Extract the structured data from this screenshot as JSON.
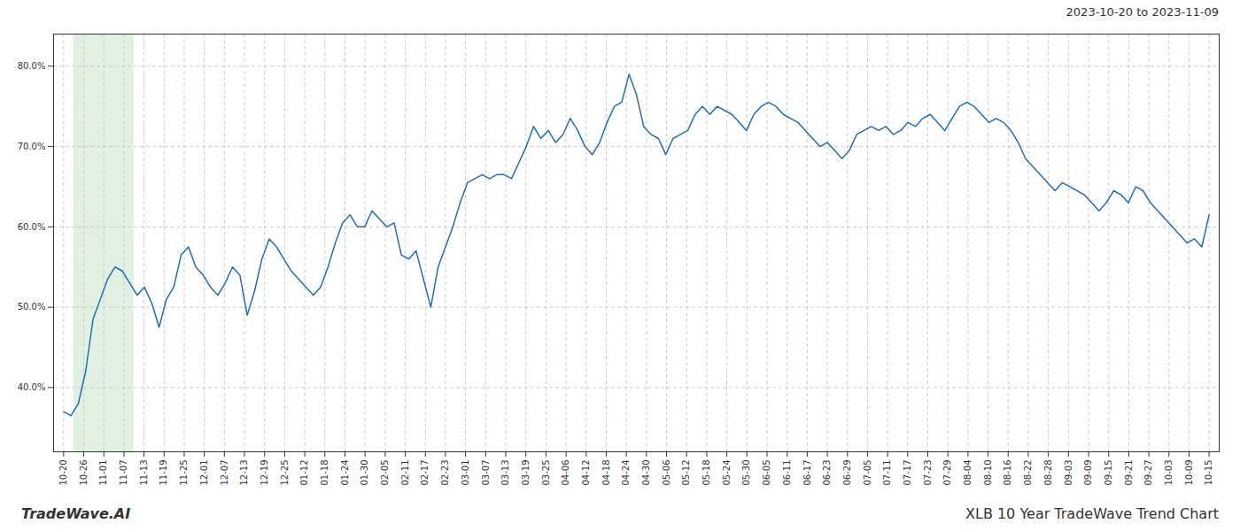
{
  "chart_data": {
    "type": "line",
    "title": "XLB 10 Year TradeWave Trend Chart",
    "subtitle": "2023-10-20 to 2023-11-09",
    "annotations": [
      "TradeWave.AI"
    ],
    "color": "#1f6eb5",
    "grid": true,
    "shade": {
      "x": [
        0.5,
        3.5
      ],
      "color": "#d6ead6"
    },
    "xlim": [
      -0.5,
      57.5
    ],
    "xticks": [
      {
        "value": 0,
        "label": "10-20"
      },
      {
        "value": 1,
        "label": "10-26"
      },
      {
        "value": 2,
        "label": "11-01"
      },
      {
        "value": 3,
        "label": "11-07"
      },
      {
        "value": 4,
        "label": "11-13"
      },
      {
        "value": 5,
        "label": "11-19"
      },
      {
        "value": 6,
        "label": "11-25"
      },
      {
        "value": 7,
        "label": "12-01"
      },
      {
        "value": 8,
        "label": "12-07"
      },
      {
        "value": 9,
        "label": "12-13"
      },
      {
        "value": 10,
        "label": "12-19"
      },
      {
        "value": 11,
        "label": "12-25"
      },
      {
        "value": 12,
        "label": "01-12"
      },
      {
        "value": 13,
        "label": "01-18"
      },
      {
        "value": 14,
        "label": "01-24"
      },
      {
        "value": 15,
        "label": "01-30"
      },
      {
        "value": 16,
        "label": "02-05"
      },
      {
        "value": 17,
        "label": "02-11"
      },
      {
        "value": 18,
        "label": "02-17"
      },
      {
        "value": 19,
        "label": "02-23"
      },
      {
        "value": 20,
        "label": "03-01"
      },
      {
        "value": 21,
        "label": "03-07"
      },
      {
        "value": 22,
        "label": "03-13"
      },
      {
        "value": 23,
        "label": "03-19"
      },
      {
        "value": 24,
        "label": "03-25"
      },
      {
        "value": 25,
        "label": "04-06"
      },
      {
        "value": 26,
        "label": "04-12"
      },
      {
        "value": 27,
        "label": "04-18"
      },
      {
        "value": 28,
        "label": "04-24"
      },
      {
        "value": 29,
        "label": "04-30"
      },
      {
        "value": 30,
        "label": "05-06"
      },
      {
        "value": 31,
        "label": "05-12"
      },
      {
        "value": 32,
        "label": "05-18"
      },
      {
        "value": 33,
        "label": "05-24"
      },
      {
        "value": 34,
        "label": "05-30"
      },
      {
        "value": 35,
        "label": "06-05"
      },
      {
        "value": 36,
        "label": "06-11"
      },
      {
        "value": 37,
        "label": "06-17"
      },
      {
        "value": 38,
        "label": "06-23"
      },
      {
        "value": 39,
        "label": "06-29"
      },
      {
        "value": 40,
        "label": "07-05"
      },
      {
        "value": 41,
        "label": "07-11"
      },
      {
        "value": 42,
        "label": "07-17"
      },
      {
        "value": 43,
        "label": "07-23"
      },
      {
        "value": 44,
        "label": "07-29"
      },
      {
        "value": 45,
        "label": "08-04"
      },
      {
        "value": 46,
        "label": "08-10"
      },
      {
        "value": 47,
        "label": "08-16"
      },
      {
        "value": 48,
        "label": "08-22"
      },
      {
        "value": 49,
        "label": "08-28"
      },
      {
        "value": 50,
        "label": "09-03"
      },
      {
        "value": 51,
        "label": "09-09"
      },
      {
        "value": 52,
        "label": "09-15"
      },
      {
        "value": 53,
        "label": "09-21"
      },
      {
        "value": 54,
        "label": "09-27"
      },
      {
        "value": 55,
        "label": "10-03"
      },
      {
        "value": 56,
        "label": "10-09"
      },
      {
        "value": 57,
        "label": "10-15"
      }
    ],
    "ylim": [
      32,
      84
    ],
    "yticks": [
      {
        "value": 40.0,
        "label": "40.0%"
      },
      {
        "value": 50.0,
        "label": "50.0%"
      },
      {
        "value": 60.0,
        "label": "60.0%"
      },
      {
        "value": 70.0,
        "label": "70.0%"
      },
      {
        "value": 80.0,
        "label": "80.0%"
      }
    ],
    "x": [
      0,
      0.3654,
      0.7308,
      1.0962,
      1.4615,
      1.8269,
      2.1923,
      2.5577,
      2.9231,
      3.2885,
      3.6538,
      4.0192,
      4.3846,
      4.75,
      5.1154,
      5.4808,
      5.8462,
      6.2115,
      6.5769,
      6.9423,
      7.3077,
      7.6731,
      8.0385,
      8.4038,
      8.7692,
      9.1346,
      9.5,
      9.8654,
      10.2308,
      10.5962,
      10.9615,
      11.3269,
      11.6923,
      12.0577,
      12.4231,
      12.7885,
      13.1538,
      13.5192,
      13.8846,
      14.25,
      14.6154,
      14.9808,
      15.3462,
      15.7115,
      16.0769,
      16.4423,
      16.8077,
      17.1731,
      17.5385,
      17.9038,
      18.2692,
      18.6346,
      19,
      19.3654,
      19.7308,
      20.0962,
      20.4615,
      20.8269,
      21.1923,
      21.5577,
      21.9231,
      22.2885,
      22.6538,
      23.0192,
      23.3846,
      23.75,
      24.1154,
      24.4808,
      24.8462,
      25.2115,
      25.5769,
      25.9423,
      26.3077,
      26.6731,
      27.0385,
      27.4038,
      27.7692,
      28.1346,
      28.5,
      28.8654,
      29.2308,
      29.5962,
      29.9615,
      30.3269,
      30.6923,
      31.0577,
      31.4231,
      31.7885,
      32.1538,
      32.5192,
      32.8846,
      33.25,
      33.6154,
      33.9808,
      34.3462,
      34.7115,
      35.0769,
      35.4423,
      35.8077,
      36.1731,
      36.5385,
      36.9038,
      37.2692,
      37.6346,
      38,
      38.3654,
      38.7308,
      39.0962,
      39.4615,
      39.8269,
      40.1923,
      40.5577,
      40.9231,
      41.2885,
      41.6538,
      42.0192,
      42.3846,
      42.75,
      43.1154,
      43.4808,
      43.8462,
      44.2115,
      44.5769,
      44.9423,
      45.3077,
      45.6731,
      46.0385,
      46.4038,
      46.7692,
      47.1346,
      47.5,
      47.8654,
      48.2308,
      48.5962,
      48.9615,
      49.3269,
      49.6923,
      50.0577,
      50.4231,
      50.7885,
      51.1538,
      51.5192,
      51.8846,
      52.25,
      52.6154,
      52.9808,
      53.3462,
      53.7115,
      54.0769,
      54.4423,
      54.8077,
      55.1731,
      55.5385,
      55.9038,
      56.2692,
      56.6346,
      57
    ],
    "values": [
      37.0,
      36.5,
      38.0,
      42.0,
      48.5,
      51.0,
      53.5,
      55.0,
      54.5,
      53.0,
      51.5,
      52.5,
      50.5,
      47.5,
      51.0,
      52.5,
      56.5,
      57.5,
      55.0,
      54.0,
      52.5,
      51.5,
      53.0,
      55.0,
      54.0,
      49.0,
      52.0,
      56.0,
      58.5,
      57.5,
      56.0,
      54.5,
      53.5,
      52.5,
      51.5,
      52.5,
      55.0,
      58.0,
      60.5,
      61.5,
      60.0,
      60.0,
      62.0,
      61.0,
      60.0,
      60.5,
      56.5,
      56.0,
      57.0,
      53.5,
      50.0,
      55.0,
      57.5,
      60.0,
      63.0,
      65.5,
      66.0,
      66.5,
      66.0,
      66.5,
      66.5,
      66.0,
      68.0,
      70.0,
      72.5,
      71.0,
      72.0,
      70.5,
      71.5,
      73.5,
      72.0,
      70.0,
      69.0,
      70.5,
      73.0,
      75.0,
      75.5,
      79.0,
      76.5,
      72.5,
      71.5,
      71.0,
      69.0,
      71.0,
      71.5,
      72.0,
      74.0,
      75.0,
      74.0,
      75.0,
      74.5,
      74.0,
      73.0,
      72.0,
      74.0,
      75.0,
      75.5,
      75.0,
      74.0,
      73.5,
      73.0,
      72.0,
      71.0,
      70.0,
      70.5,
      69.5,
      68.5,
      69.5,
      71.5,
      72.0,
      72.5,
      72.0,
      72.5,
      71.5,
      72.0,
      73.0,
      72.5,
      73.5,
      74.0,
      73.0,
      72.0,
      73.5,
      75.0,
      75.5,
      75.0,
      74.0,
      73.0,
      73.5,
      73.0,
      72.0,
      70.5,
      68.5,
      67.5,
      66.5,
      65.5,
      64.5,
      65.5,
      65.0,
      64.5,
      64.0,
      63.0,
      62.0,
      63.0,
      64.5,
      64.0,
      63.0,
      65.0,
      64.5,
      63.0,
      62.0,
      61.0,
      60.0,
      59.0,
      58.0,
      58.5,
      57.5,
      61.5
    ]
  }
}
